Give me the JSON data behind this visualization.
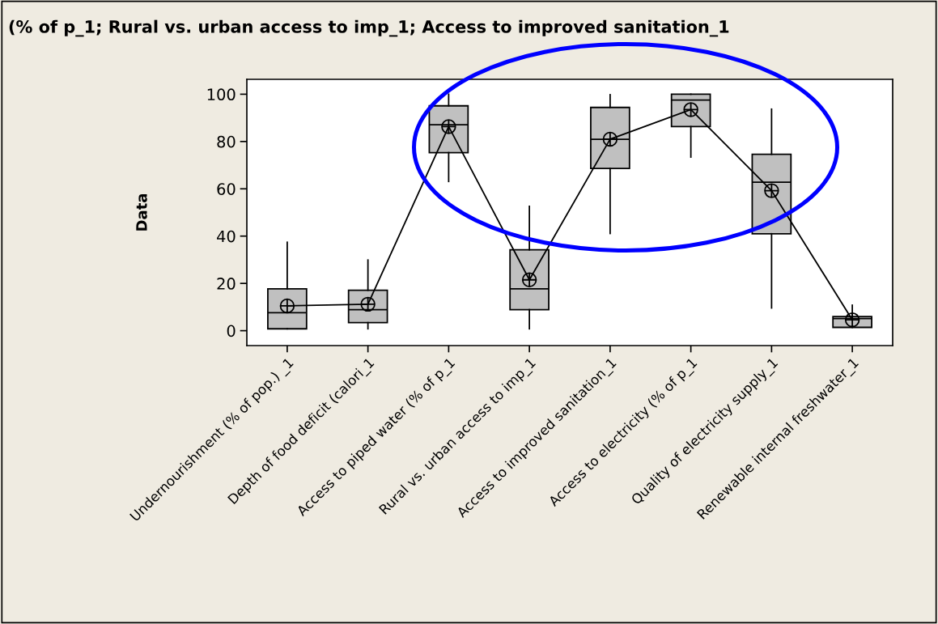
{
  "chart_data": {
    "type": "box",
    "title": "(% of p_1; Rural vs. urban access to imp_1; Access to improved sanitation_1",
    "ylabel": "Data",
    "categories": [
      "Undernourishment (% of pop.) _1",
      "Depth of food deficit (calori_1",
      "Access to piped water (% of p_1",
      "Rural vs. urban access to imp_1",
      "Access to improved sanitation_1",
      "Access to electricity (% of p_1",
      "Quality of electricity supply_1",
      "Renewable internal freshwater_1"
    ],
    "boxes": [
      {
        "low": 0.8,
        "q1": 0.8,
        "median": 7.6,
        "q3": 17.7,
        "high": 37.4,
        "mean": 10.5
      },
      {
        "low": 0.8,
        "q1": 3.4,
        "median": 8.9,
        "q3": 17.1,
        "high": 29.9,
        "mean": 11.2
      },
      {
        "low": 63.1,
        "q1": 75.3,
        "median": 87.1,
        "q3": 95.1,
        "high": 100,
        "mean": 86.3
      },
      {
        "low": 0.8,
        "q1": 8.9,
        "median": 17.7,
        "q3": 34.2,
        "high": 52.6,
        "mean": 21.5
      },
      {
        "low": 41.1,
        "q1": 68.6,
        "median": 80.9,
        "q3": 94.4,
        "high": 99.8,
        "mean": 81.0
      },
      {
        "low": 73.4,
        "q1": 86.3,
        "median": 97.5,
        "q3": 100,
        "high": 100,
        "mean": 93.5
      },
      {
        "low": 9.6,
        "q1": 41.0,
        "median": 62.8,
        "q3": 74.6,
        "high": 93.7,
        "mean": 59.2
      },
      {
        "low": 1.4,
        "q1": 1.4,
        "median": 5.1,
        "q3": 6.0,
        "high": 10.8,
        "mean": 4.6
      }
    ],
    "series": [
      {
        "type": "line",
        "color": "#000000",
        "values": [
          10.5,
          11.2,
          86.3,
          21.5,
          81.0,
          93.5,
          59.2,
          4.6
        ]
      }
    ],
    "color": "#c0c0c0",
    "ylim": [
      -6.3,
      106.3
    ],
    "yticks": [
      0,
      20,
      40,
      60,
      80,
      100
    ],
    "grid": false,
    "legend": false
  }
}
